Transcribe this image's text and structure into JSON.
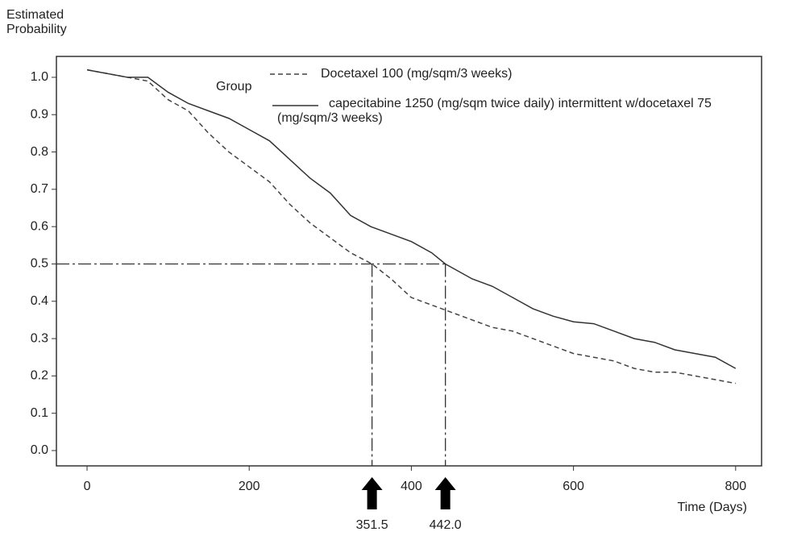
{
  "chart_data": {
    "type": "line",
    "y_label": "Estimated Probability",
    "x_label": "Time (Days)",
    "legend_title": "Group",
    "xlim": [
      -37.8,
      832
    ],
    "xticks": [
      0,
      200,
      400,
      600,
      800
    ],
    "ylim": [
      -0.041,
      1.056
    ],
    "yticks": [
      {
        "value": 0,
        "label": "0.0"
      },
      {
        "value": 0.1,
        "label": "0.1"
      },
      {
        "value": 0.2,
        "label": "0.2"
      },
      {
        "value": 0.3,
        "label": "0.3"
      },
      {
        "value": 0.4,
        "label": "0.4"
      },
      {
        "value": 0.5,
        "label": "0.5"
      },
      {
        "value": 0.6,
        "label": "0.6"
      },
      {
        "value": 0.7,
        "label": "0.7"
      },
      {
        "value": 0.8,
        "label": "0.8"
      },
      {
        "value": 0.9,
        "label": "0.9"
      },
      {
        "value": 1,
        "label": "1.0"
      }
    ],
    "median_probability": 0.5,
    "medians": [
      {
        "value": 351.5,
        "label": "351.5"
      },
      {
        "value": 442,
        "label": "442.0"
      }
    ],
    "series": [
      {
        "name": "Docetaxel 100 (mg/sqm/3 weeks)",
        "color": "#444444",
        "dash": true,
        "x": [
          0,
          50,
          75,
          100,
          125,
          150,
          175,
          200,
          225,
          250,
          275,
          300,
          325,
          351.5,
          375,
          400,
          425,
          450,
          475,
          500,
          525,
          550,
          575,
          600,
          625,
          650,
          675,
          700,
          725,
          750,
          775,
          800
        ],
        "values": [
          1.02,
          1.0,
          0.99,
          0.94,
          0.91,
          0.85,
          0.8,
          0.76,
          0.72,
          0.66,
          0.61,
          0.57,
          0.53,
          0.5,
          0.46,
          0.41,
          0.39,
          0.37,
          0.35,
          0.33,
          0.32,
          0.3,
          0.28,
          0.26,
          0.25,
          0.24,
          0.22,
          0.21,
          0.21,
          0.2,
          0.19,
          0.18
        ]
      },
      {
        "name": "capecitabine 1250 (mg/sqm twice daily) intermittent w/docetaxel 75 (mg/sqm/3 weeks)",
        "color": "#333333",
        "dash": false,
        "x": [
          0,
          50,
          75,
          100,
          125,
          150,
          175,
          200,
          225,
          250,
          275,
          300,
          325,
          350,
          375,
          400,
          425,
          442,
          475,
          500,
          525,
          550,
          575,
          600,
          625,
          650,
          675,
          700,
          725,
          750,
          775,
          800
        ],
        "values": [
          1.02,
          1.0,
          1.0,
          0.96,
          0.93,
          0.91,
          0.89,
          0.86,
          0.83,
          0.78,
          0.73,
          0.69,
          0.63,
          0.6,
          0.58,
          0.56,
          0.53,
          0.5,
          0.46,
          0.44,
          0.41,
          0.38,
          0.36,
          0.345,
          0.34,
          0.32,
          0.3,
          0.29,
          0.27,
          0.26,
          0.25,
          0.22
        ]
      }
    ]
  }
}
